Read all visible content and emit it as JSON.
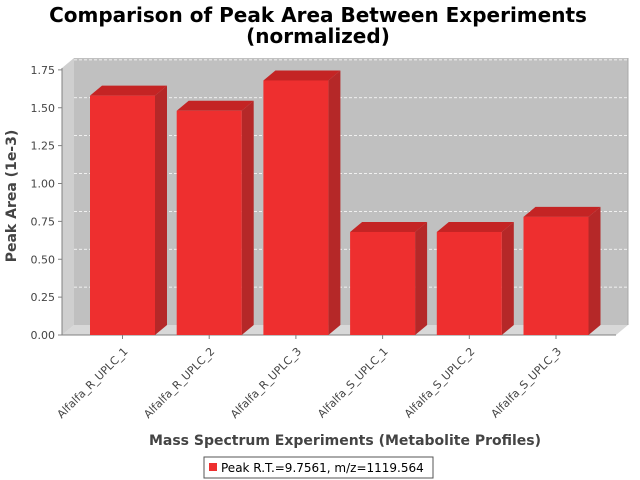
{
  "chart_data": {
    "type": "bar",
    "title_line1": "Comparison of Peak Area Between Experiments",
    "title_line2": "(normalized)",
    "xlabel": "Mass Spectrum Experiments (Metabolite Profiles)",
    "ylabel": "Peak Area (1e-3)",
    "categories": [
      "Alfalfa_R_UPLC_1",
      "Alfalfa_R_UPLC_2",
      "Alfalfa_R_UPLC_3",
      "Alfalfa_S_UPLC_1",
      "Alfalfa_S_UPLC_2",
      "Alfalfa_S_UPLC_3"
    ],
    "series": [
      {
        "name": "Peak R.T.=9.7561, m/z=1119.564",
        "values": [
          1.58,
          1.48,
          1.68,
          0.68,
          0.68,
          0.78
        ]
      }
    ],
    "yticks": [
      "0.00",
      "0.25",
      "0.50",
      "0.75",
      "1.00",
      "1.25",
      "1.50",
      "1.75"
    ],
    "ylim": [
      0,
      1.8
    ],
    "grid": true,
    "legend_position": "bottom",
    "colors": {
      "bar": "#ee2f2f",
      "bar_top": "#c42424",
      "bar_side": "#b52828",
      "plot_bg": "#c0c0c0",
      "grid": "#ffffff"
    }
  }
}
